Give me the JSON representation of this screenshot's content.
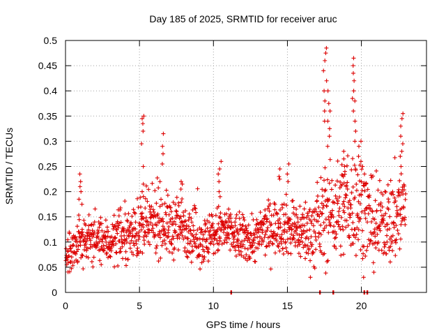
{
  "chart_data": {
    "type": "scatter",
    "title": "Day 185 of 2025, SRMTID for receiver aruc",
    "xlabel": "GPS time / hours",
    "ylabel": "SRMTID / TECUs",
    "xlim": [
      0,
      24.4
    ],
    "ylim": [
      0,
      0.5
    ],
    "xticks": [
      0,
      5,
      10,
      15,
      20
    ],
    "xtick_labels": [
      "0",
      "5",
      "10",
      "15",
      "20"
    ],
    "yticks": [
      0,
      0.05,
      0.1,
      0.15,
      0.2,
      0.25,
      0.3,
      0.35,
      0.4,
      0.45,
      0.5
    ],
    "ytick_labels": [
      "0",
      "0.05",
      "0.1",
      "0.15",
      "0.2",
      "0.25",
      "0.3",
      "0.35",
      "0.4",
      "0.45",
      "0.5"
    ],
    "grid": true,
    "marker": "plus",
    "series": [
      {
        "name": "SRMTID",
        "color": "#dd0000",
        "baseline": [
          [
            0.0,
            0.065
          ],
          [
            0.3,
            0.075
          ],
          [
            0.6,
            0.09
          ],
          [
            1.0,
            0.1
          ],
          [
            1.5,
            0.11
          ],
          [
            2.0,
            0.105
          ],
          [
            2.5,
            0.1
          ],
          [
            3.0,
            0.1
          ],
          [
            3.5,
            0.11
          ],
          [
            4.0,
            0.11
          ],
          [
            4.5,
            0.12
          ],
          [
            5.0,
            0.125
          ],
          [
            5.5,
            0.13
          ],
          [
            6.0,
            0.14
          ],
          [
            6.5,
            0.14
          ],
          [
            7.0,
            0.13
          ],
          [
            7.5,
            0.13
          ],
          [
            8.0,
            0.135
          ],
          [
            8.5,
            0.12
          ],
          [
            9.0,
            0.11
          ],
          [
            9.5,
            0.1
          ],
          [
            10.0,
            0.115
          ],
          [
            10.5,
            0.125
          ],
          [
            11.0,
            0.12
          ],
          [
            11.5,
            0.11
          ],
          [
            12.0,
            0.105
          ],
          [
            12.5,
            0.105
          ],
          [
            13.0,
            0.11
          ],
          [
            13.5,
            0.125
          ],
          [
            14.0,
            0.13
          ],
          [
            14.5,
            0.135
          ],
          [
            15.0,
            0.13
          ],
          [
            15.5,
            0.125
          ],
          [
            16.0,
            0.12
          ],
          [
            16.5,
            0.12
          ],
          [
            17.0,
            0.125
          ],
          [
            17.5,
            0.15
          ],
          [
            18.0,
            0.16
          ],
          [
            18.5,
            0.165
          ],
          [
            19.0,
            0.17
          ],
          [
            19.5,
            0.18
          ],
          [
            20.0,
            0.17
          ],
          [
            20.5,
            0.14
          ],
          [
            21.0,
            0.125
          ],
          [
            21.5,
            0.15
          ],
          [
            22.0,
            0.14
          ],
          [
            22.5,
            0.16
          ],
          [
            23.0,
            0.17
          ]
        ],
        "spread": [
          [
            0.0,
            0.025
          ],
          [
            1.0,
            0.03
          ],
          [
            4.0,
            0.03
          ],
          [
            5.0,
            0.04
          ],
          [
            7.0,
            0.04
          ],
          [
            9.0,
            0.035
          ],
          [
            12.0,
            0.03
          ],
          [
            14.0,
            0.035
          ],
          [
            16.0,
            0.04
          ],
          [
            17.5,
            0.06
          ],
          [
            20.0,
            0.07
          ],
          [
            21.0,
            0.05
          ],
          [
            23.0,
            0.07
          ]
        ],
        "bursts": [
          {
            "t": 1.0,
            "values": [
              0.2,
              0.21,
              0.22,
              0.235,
              0.175,
              0.185
            ]
          },
          {
            "t": 5.25,
            "values": [
              0.35,
              0.345,
              0.335,
              0.32,
              0.295,
              0.25,
              0.215,
              0.2
            ]
          },
          {
            "t": 6.5,
            "values": [
              0.315,
              0.29,
              0.275,
              0.255,
              0.22
            ]
          },
          {
            "t": 7.9,
            "values": [
              0.22,
              0.215,
              0.205
            ]
          },
          {
            "t": 10.4,
            "values": [
              0.26,
              0.245,
              0.235,
              0.22,
              0.2,
              0.19
            ]
          },
          {
            "t": 14.4,
            "values": [
              0.245,
              0.23,
              0.225
            ]
          },
          {
            "t": 15.0,
            "values": [
              0.255,
              0.235,
              0.22
            ]
          },
          {
            "t": 17.55,
            "values": [
              0.485,
              0.475,
              0.46,
              0.44,
              0.42,
              0.4,
              0.38,
              0.36,
              0.34
            ]
          },
          {
            "t": 17.8,
            "values": [
              0.4,
              0.375,
              0.36,
              0.34,
              0.325,
              0.31,
              0.29
            ]
          },
          {
            "t": 18.9,
            "values": [
              0.28,
              0.265,
              0.25,
              0.24,
              0.23
            ]
          },
          {
            "t": 19.5,
            "values": [
              0.465,
              0.45,
              0.435,
              0.42,
              0.4,
              0.385,
              0.38,
              0.36,
              0.34,
              0.32,
              0.3
            ]
          },
          {
            "t": 19.9,
            "values": [
              0.3,
              0.29,
              0.27,
              0.26
            ]
          },
          {
            "t": 20.2,
            "values": [
              0.25,
              0.235,
              0.215
            ]
          },
          {
            "t": 22.7,
            "values": [
              0.355,
              0.345,
              0.33,
              0.31,
              0.295,
              0.28,
              0.27,
              0.25
            ]
          }
        ],
        "zero_values_at": [
          11.2,
          17.2,
          18.1,
          20.2,
          20.4
        ]
      }
    ]
  }
}
